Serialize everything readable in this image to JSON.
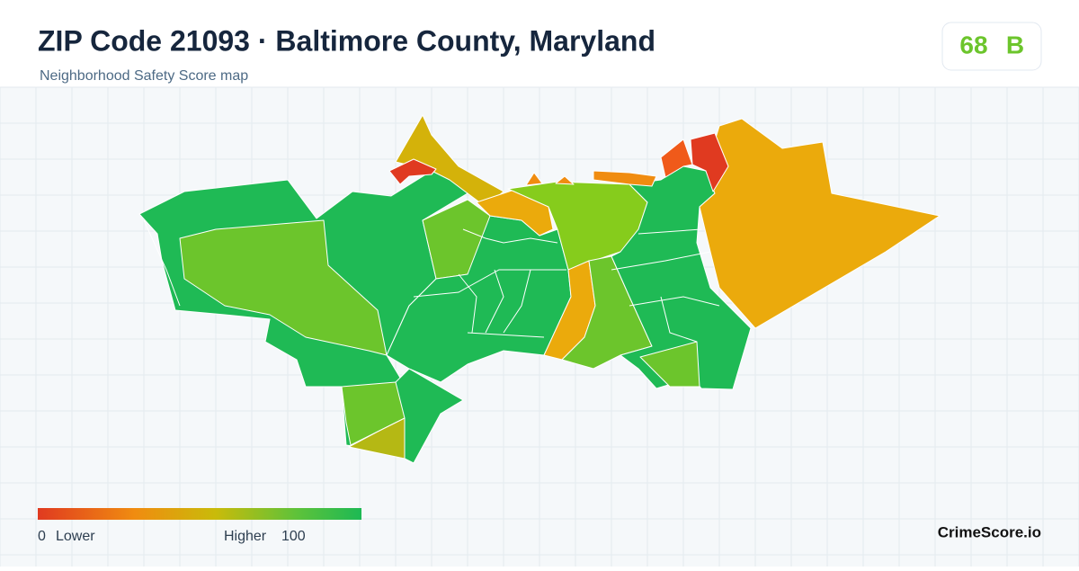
{
  "header": {
    "title": "ZIP Code 21093 · Baltimore County, Maryland",
    "subtitle": "Neighborhood Safety Score map"
  },
  "score": {
    "value": 68,
    "grade": "B"
  },
  "legend": {
    "min": 0,
    "min_label": "Lower",
    "max_label": "Higher",
    "max": 100
  },
  "brand": "CrimeScore.io"
}
